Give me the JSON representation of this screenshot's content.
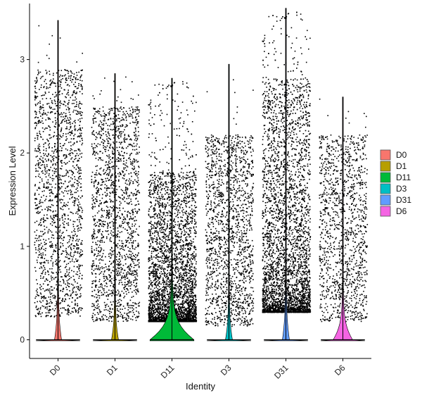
{
  "chart_data": {
    "type": "violin",
    "xlabel": "Identity",
    "ylabel": "Expression Level",
    "categories": [
      "D0",
      "D1",
      "D11",
      "D3",
      "D31",
      "D6"
    ],
    "ylim": [
      -0.2,
      3.6
    ],
    "yticks": [
      0,
      1,
      2,
      3
    ],
    "grid": false,
    "legend_position": "right",
    "legend": [
      {
        "name": "D0",
        "color": "#F8766D"
      },
      {
        "name": "D1",
        "color": "#B79F00"
      },
      {
        "name": "D11",
        "color": "#00BA38"
      },
      {
        "name": "D3",
        "color": "#00BFC4"
      },
      {
        "name": "D31",
        "color": "#619CFF"
      },
      {
        "name": "D6",
        "color": "#F564E3"
      }
    ],
    "series": [
      {
        "name": "D0",
        "max": 3.42,
        "zero_density_peak": 0.02,
        "jitter_points": 1700,
        "jitter_dist": [
          0.25,
          2.9,
          "uniform"
        ]
      },
      {
        "name": "D1",
        "max": 2.85,
        "zero_density_peak": 0.02,
        "jitter_points": 1700,
        "jitter_dist": [
          0.2,
          2.5,
          "uniform"
        ]
      },
      {
        "name": "D11",
        "max": 2.8,
        "zero_density_peak": 0.14,
        "jitter_points": 3800,
        "jitter_dist": [
          0.2,
          1.8,
          "skewed"
        ]
      },
      {
        "name": "D3",
        "max": 2.95,
        "zero_density_peak": 0.02,
        "jitter_points": 1600,
        "jitter_dist": [
          0.15,
          2.2,
          "uniform"
        ]
      },
      {
        "name": "D31",
        "max": 3.55,
        "zero_density_peak": 0.02,
        "jitter_points": 4200,
        "jitter_dist": [
          0.3,
          2.8,
          "skewed"
        ]
      },
      {
        "name": "D6",
        "max": 2.6,
        "zero_density_peak": 0.06,
        "jitter_points": 1300,
        "jitter_dist": [
          0.2,
          2.2,
          "uniform"
        ]
      }
    ]
  }
}
